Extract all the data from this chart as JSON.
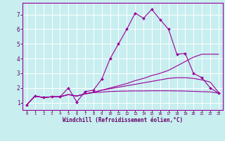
{
  "xlabel": "Windchill (Refroidissement éolien,°C)",
  "ylabel": "",
  "background_color": "#c8eef0",
  "grid_color": "#ffffff",
  "line_color": "#990099",
  "xlim": [
    -0.5,
    23.5
  ],
  "ylim": [
    0.5,
    7.8
  ],
  "xticks": [
    0,
    1,
    2,
    3,
    4,
    5,
    6,
    7,
    8,
    9,
    10,
    11,
    12,
    13,
    14,
    15,
    16,
    17,
    18,
    19,
    20,
    21,
    22,
    23
  ],
  "yticks": [
    1,
    2,
    3,
    4,
    5,
    6,
    7
  ],
  "series1_x": [
    0,
    1,
    2,
    3,
    4,
    5,
    6,
    7,
    8,
    9,
    10,
    11,
    12,
    13,
    14,
    15,
    16,
    17,
    18,
    19,
    20,
    21,
    22,
    23
  ],
  "series1_y": [
    0.85,
    1.45,
    1.35,
    1.4,
    1.4,
    2.0,
    1.05,
    1.75,
    1.85,
    2.6,
    4.0,
    5.0,
    6.0,
    7.1,
    6.75,
    7.35,
    6.65,
    6.0,
    4.3,
    4.35,
    3.0,
    2.7,
    2.0,
    1.65
  ],
  "series2_x": [
    0,
    1,
    2,
    3,
    4,
    5,
    6,
    7,
    8,
    9,
    10,
    11,
    12,
    13,
    14,
    15,
    16,
    17,
    18,
    19,
    20,
    21,
    22,
    23
  ],
  "series2_y": [
    0.85,
    1.45,
    1.35,
    1.4,
    1.4,
    1.55,
    1.45,
    1.6,
    1.7,
    1.85,
    2.0,
    2.15,
    2.3,
    2.5,
    2.65,
    2.85,
    3.0,
    3.2,
    3.5,
    3.8,
    4.1,
    4.3,
    4.3,
    4.3
  ],
  "series3_x": [
    0,
    1,
    2,
    3,
    4,
    5,
    6,
    7,
    8,
    9,
    10,
    11,
    12,
    13,
    14,
    15,
    16,
    17,
    18,
    19,
    20,
    21,
    22,
    23
  ],
  "series3_y": [
    0.85,
    1.45,
    1.35,
    1.4,
    1.4,
    1.55,
    1.45,
    1.6,
    1.7,
    1.85,
    1.95,
    2.05,
    2.15,
    2.25,
    2.35,
    2.45,
    2.55,
    2.65,
    2.7,
    2.7,
    2.65,
    2.55,
    2.4,
    1.7
  ],
  "series4_x": [
    0,
    1,
    2,
    3,
    4,
    5,
    6,
    7,
    8,
    9,
    10,
    11,
    12,
    13,
    14,
    15,
    16,
    17,
    18,
    19,
    20,
    21,
    22,
    23
  ],
  "series4_y": [
    0.85,
    1.45,
    1.35,
    1.4,
    1.4,
    1.55,
    1.45,
    1.6,
    1.68,
    1.72,
    1.76,
    1.78,
    1.79,
    1.8,
    1.8,
    1.81,
    1.81,
    1.81,
    1.8,
    1.79,
    1.77,
    1.75,
    1.73,
    1.65
  ]
}
